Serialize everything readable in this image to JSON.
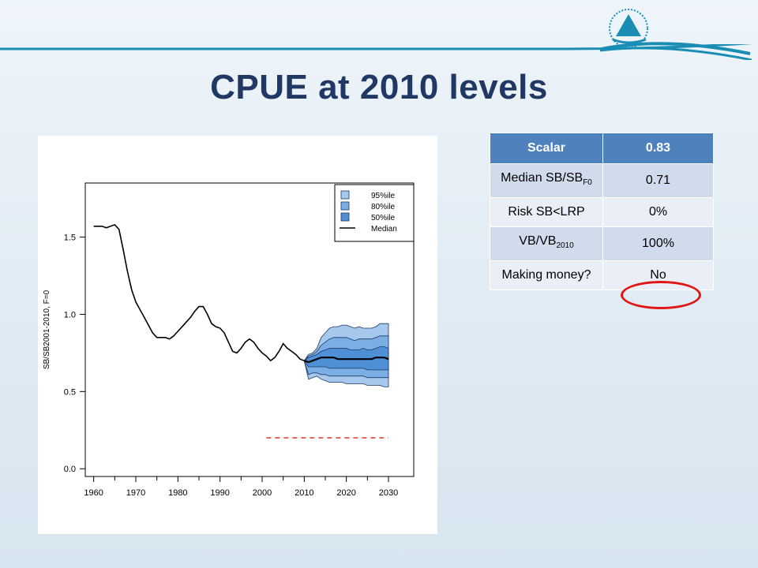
{
  "slide": {
    "title": "CPUE at 2010 levels"
  },
  "table": {
    "header": {
      "label": "Scalar",
      "value": "0.83"
    },
    "rows": [
      {
        "label": "Median SB/SB",
        "label_sub": "F0",
        "value": "0.71"
      },
      {
        "label": "Risk SB<LRP",
        "label_sub": "",
        "value": "0%"
      },
      {
        "label": "VB/VB",
        "label_sub": "2010",
        "value": "100%"
      },
      {
        "label": "Making money?",
        "label_sub": "",
        "value": "No"
      }
    ],
    "highlight_color": "#e21515"
  },
  "chart_data": {
    "type": "line",
    "ylabel": "SB/SB2001-2010, F=0",
    "xlabel": "",
    "xlim": [
      1958,
      2036
    ],
    "ylim": [
      -0.05,
      1.85
    ],
    "x_ticks": [
      1960,
      1970,
      1980,
      1990,
      2000,
      2010,
      2020,
      2030
    ],
    "y_ticks": [
      0.0,
      0.5,
      1.0,
      1.5
    ],
    "y_tick_labels": [
      "0.0",
      "0.5",
      "1.0",
      "1.5"
    ],
    "legend": {
      "position": "top-right",
      "entries": [
        "95%ile",
        "80%ile",
        "50%ile",
        "Median"
      ]
    },
    "colors": {
      "band95": "#a6c8ec",
      "band80": "#7aaee4",
      "band50": "#4f8fd6",
      "median": "#000000",
      "lrp": "#e8332f"
    },
    "series": [
      {
        "name": "Median",
        "x": [
          1960,
          1961,
          1962,
          1963,
          1964,
          1965,
          1966,
          1967,
          1968,
          1969,
          1970,
          1971,
          1972,
          1973,
          1974,
          1975,
          1976,
          1977,
          1978,
          1979,
          1980,
          1981,
          1982,
          1983,
          1984,
          1985,
          1986,
          1987,
          1988,
          1989,
          1990,
          1991,
          1992,
          1993,
          1994,
          1995,
          1996,
          1997,
          1998,
          1999,
          2000,
          2001,
          2002,
          2003,
          2004,
          2005,
          2006,
          2007,
          2008,
          2009,
          2010
        ],
        "values": [
          1.57,
          1.57,
          1.57,
          1.56,
          1.57,
          1.58,
          1.55,
          1.42,
          1.28,
          1.16,
          1.08,
          1.03,
          0.98,
          0.93,
          0.88,
          0.85,
          0.85,
          0.85,
          0.84,
          0.86,
          0.89,
          0.92,
          0.95,
          0.98,
          1.02,
          1.05,
          1.05,
          1.0,
          0.94,
          0.92,
          0.91,
          0.88,
          0.82,
          0.76,
          0.75,
          0.78,
          0.82,
          0.84,
          0.82,
          0.78,
          0.75,
          0.73,
          0.7,
          0.72,
          0.76,
          0.81,
          0.78,
          0.76,
          0.74,
          0.71,
          0.7
        ]
      }
    ],
    "projection": {
      "x": [
        2010,
        2011,
        2012,
        2013,
        2014,
        2015,
        2016,
        2017,
        2018,
        2019,
        2020,
        2021,
        2022,
        2023,
        2024,
        2025,
        2026,
        2027,
        2028,
        2029,
        2030
      ],
      "median": [
        0.7,
        0.69,
        0.7,
        0.71,
        0.72,
        0.72,
        0.72,
        0.72,
        0.71,
        0.71,
        0.71,
        0.71,
        0.71,
        0.71,
        0.71,
        0.71,
        0.71,
        0.72,
        0.72,
        0.72,
        0.71
      ],
      "p95_upper": [
        0.7,
        0.74,
        0.75,
        0.78,
        0.85,
        0.88,
        0.91,
        0.92,
        0.92,
        0.93,
        0.93,
        0.92,
        0.91,
        0.92,
        0.91,
        0.91,
        0.91,
        0.92,
        0.94,
        0.94,
        0.94
      ],
      "p95_lower": [
        0.7,
        0.58,
        0.59,
        0.6,
        0.58,
        0.57,
        0.56,
        0.56,
        0.56,
        0.56,
        0.55,
        0.55,
        0.55,
        0.55,
        0.55,
        0.54,
        0.54,
        0.54,
        0.54,
        0.53,
        0.53
      ],
      "p80_upper": [
        0.7,
        0.73,
        0.74,
        0.76,
        0.8,
        0.82,
        0.84,
        0.85,
        0.85,
        0.85,
        0.85,
        0.84,
        0.83,
        0.84,
        0.84,
        0.84,
        0.84,
        0.85,
        0.86,
        0.86,
        0.86
      ],
      "p80_lower": [
        0.7,
        0.61,
        0.62,
        0.62,
        0.61,
        0.61,
        0.6,
        0.6,
        0.6,
        0.6,
        0.6,
        0.6,
        0.6,
        0.6,
        0.6,
        0.59,
        0.59,
        0.59,
        0.59,
        0.59,
        0.59
      ],
      "p50_upper": [
        0.7,
        0.72,
        0.73,
        0.74,
        0.76,
        0.77,
        0.78,
        0.78,
        0.78,
        0.78,
        0.78,
        0.77,
        0.77,
        0.77,
        0.78,
        0.77,
        0.77,
        0.78,
        0.79,
        0.79,
        0.78
      ],
      "p50_lower": [
        0.7,
        0.66,
        0.66,
        0.66,
        0.66,
        0.66,
        0.65,
        0.65,
        0.65,
        0.65,
        0.65,
        0.65,
        0.65,
        0.65,
        0.65,
        0.64,
        0.64,
        0.64,
        0.64,
        0.64,
        0.64
      ]
    },
    "lrp_line": {
      "x": [
        2001,
        2030
      ],
      "y": 0.2
    }
  }
}
